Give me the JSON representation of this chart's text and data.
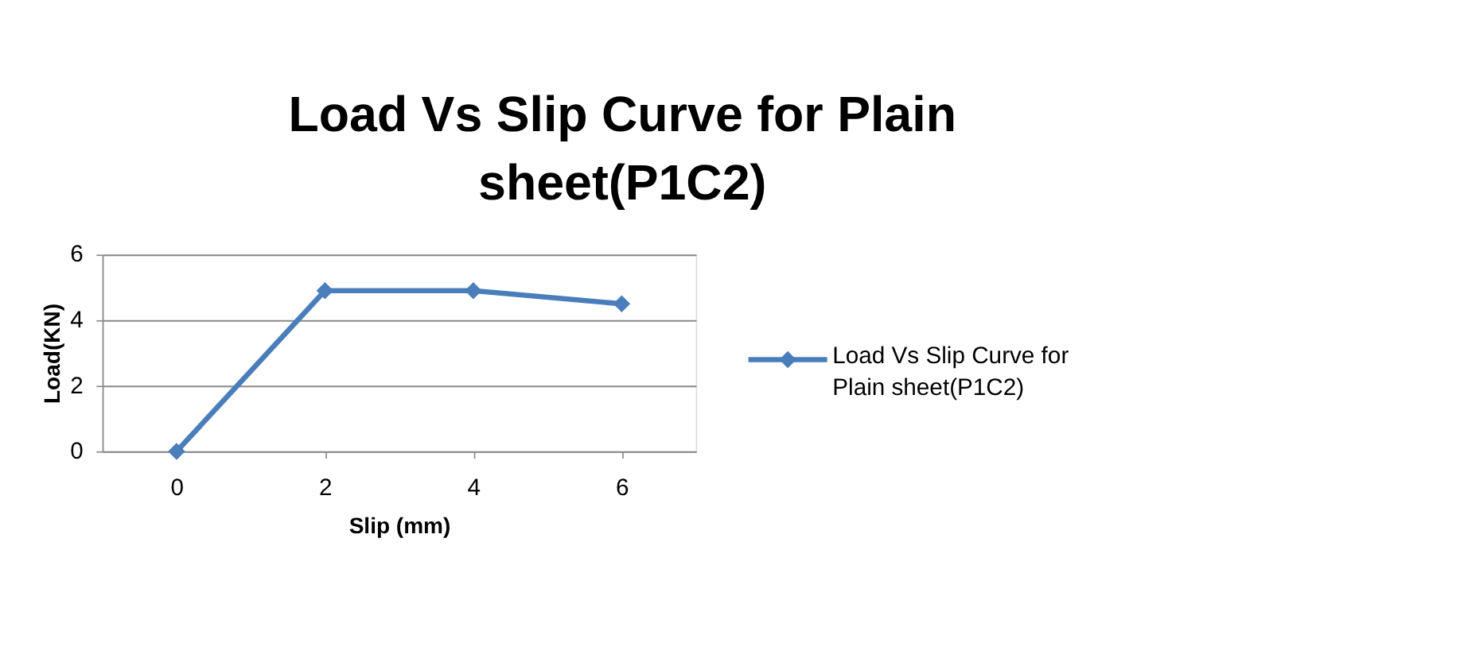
{
  "chart_data": {
    "type": "line",
    "title": "Load Vs Slip Curve for Plain sheet(P1C2)",
    "xlabel": "Slip (mm)",
    "ylabel": "Load(KN)",
    "categories": [
      "0",
      "2",
      "4",
      "6"
    ],
    "series": [
      {
        "name": "Load Vs Slip Curve for Plain sheet(P1C2)",
        "color": "#4a7ebb",
        "values": [
          0,
          4.9,
          4.9,
          4.5
        ]
      }
    ],
    "ylim": [
      0,
      6
    ],
    "yticks": [
      0,
      2,
      4,
      6
    ],
    "grid": "y",
    "legend": "right",
    "marker": "diamond",
    "line_style": "solid"
  }
}
